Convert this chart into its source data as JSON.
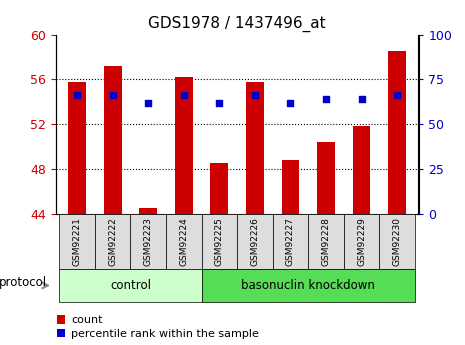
{
  "title": "GDS1978 / 1437496_at",
  "samples": [
    "GSM92221",
    "GSM92222",
    "GSM92223",
    "GSM92224",
    "GSM92225",
    "GSM92226",
    "GSM92227",
    "GSM92228",
    "GSM92229",
    "GSM92230"
  ],
  "count_values": [
    55.8,
    57.2,
    44.5,
    56.2,
    48.5,
    55.8,
    48.8,
    50.4,
    51.8,
    58.5
  ],
  "percentile_values": [
    66,
    66,
    62,
    66,
    62,
    66,
    62,
    64,
    64,
    66
  ],
  "ylim_left": [
    44,
    60
  ],
  "ylim_right": [
    0,
    100
  ],
  "yticks_left": [
    44,
    48,
    52,
    56,
    60
  ],
  "yticks_right": [
    0,
    25,
    50,
    75,
    100
  ],
  "bar_color": "#cc0000",
  "dot_color": "#0000cc",
  "bar_width": 0.5,
  "control_samples": [
    0,
    1,
    2,
    3
  ],
  "knockdown_samples": [
    4,
    5,
    6,
    7,
    8,
    9
  ],
  "control_label": "control",
  "knockdown_label": "basonuclin knockdown",
  "protocol_label": "protocol",
  "legend_count_label": "count",
  "legend_percentile_label": "percentile rank within the sample",
  "control_color": "#ccffcc",
  "knockdown_color": "#55dd55",
  "tick_label_bg": "#dddddd",
  "grid_color": "#000000",
  "right_axis_color": "#0000cc",
  "left_axis_color": "#cc0000"
}
